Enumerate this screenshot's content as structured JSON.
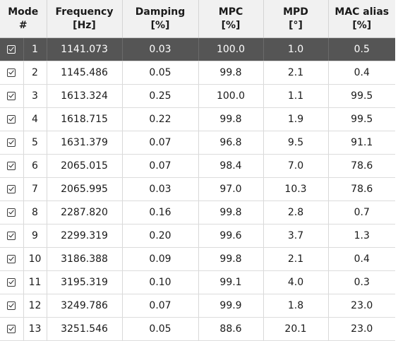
{
  "table": {
    "headers": {
      "mode_line1": "Mode",
      "mode_line2": "#",
      "freq_line1": "Frequency",
      "freq_line2": "[Hz]",
      "damp_line1": "Damping",
      "damp_line2": "[%]",
      "mpc_line1": "MPC",
      "mpc_line2": "[%]",
      "mpd_line1": "MPD",
      "mpd_line2": "[°]",
      "mac_line1": "MAC alias",
      "mac_line2": "[%]"
    },
    "selected_row_index": 0,
    "rows": [
      {
        "checked": true,
        "mode": "1",
        "frequency": "1141.073",
        "damping": "0.03",
        "mpc": "100.0",
        "mpd": "1.0",
        "mac_alias": "0.5"
      },
      {
        "checked": true,
        "mode": "2",
        "frequency": "1145.486",
        "damping": "0.05",
        "mpc": "99.8",
        "mpd": "2.1",
        "mac_alias": "0.4"
      },
      {
        "checked": true,
        "mode": "3",
        "frequency": "1613.324",
        "damping": "0.25",
        "mpc": "100.0",
        "mpd": "1.1",
        "mac_alias": "99.5"
      },
      {
        "checked": true,
        "mode": "4",
        "frequency": "1618.715",
        "damping": "0.22",
        "mpc": "99.8",
        "mpd": "1.9",
        "mac_alias": "99.5"
      },
      {
        "checked": true,
        "mode": "5",
        "frequency": "1631.379",
        "damping": "0.07",
        "mpc": "96.8",
        "mpd": "9.5",
        "mac_alias": "91.1"
      },
      {
        "checked": true,
        "mode": "6",
        "frequency": "2065.015",
        "damping": "0.07",
        "mpc": "98.4",
        "mpd": "7.0",
        "mac_alias": "78.6"
      },
      {
        "checked": true,
        "mode": "7",
        "frequency": "2065.995",
        "damping": "0.03",
        "mpc": "97.0",
        "mpd": "10.3",
        "mac_alias": "78.6"
      },
      {
        "checked": true,
        "mode": "8",
        "frequency": "2287.820",
        "damping": "0.16",
        "mpc": "99.8",
        "mpd": "2.8",
        "mac_alias": "0.7"
      },
      {
        "checked": true,
        "mode": "9",
        "frequency": "2299.319",
        "damping": "0.20",
        "mpc": "99.6",
        "mpd": "3.7",
        "mac_alias": "1.3"
      },
      {
        "checked": true,
        "mode": "10",
        "frequency": "3186.388",
        "damping": "0.09",
        "mpc": "99.8",
        "mpd": "2.1",
        "mac_alias": "0.4"
      },
      {
        "checked": true,
        "mode": "11",
        "frequency": "3195.319",
        "damping": "0.10",
        "mpc": "99.1",
        "mpd": "4.0",
        "mac_alias": "0.3"
      },
      {
        "checked": true,
        "mode": "12",
        "frequency": "3249.786",
        "damping": "0.07",
        "mpc": "99.9",
        "mpd": "1.8",
        "mac_alias": "23.0"
      },
      {
        "checked": true,
        "mode": "13",
        "frequency": "3251.546",
        "damping": "0.05",
        "mpc": "88.6",
        "mpd": "20.1",
        "mac_alias": "23.0"
      }
    ]
  }
}
